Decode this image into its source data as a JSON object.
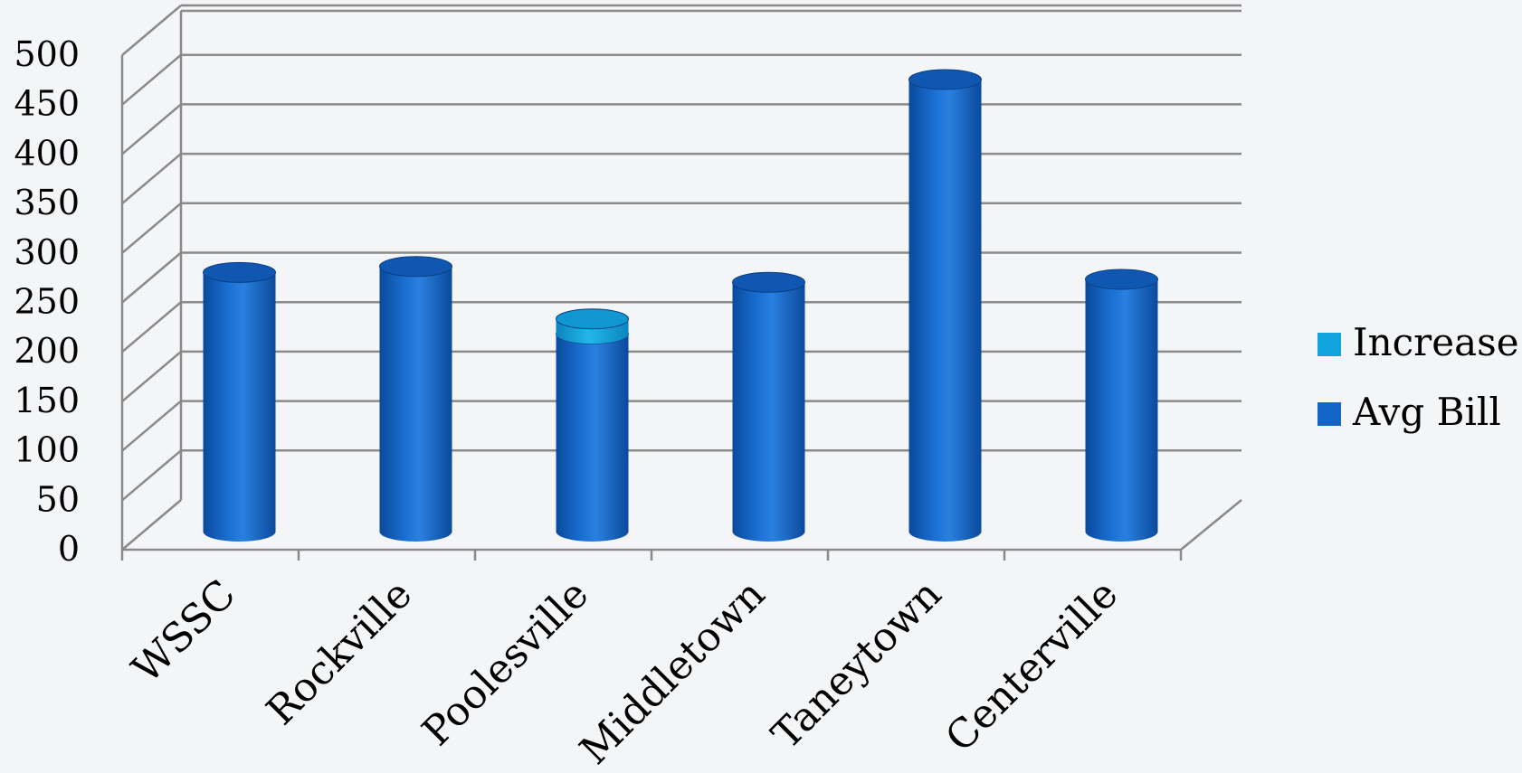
{
  "chart_data": {
    "type": "bar",
    "style": "3d-cylinder",
    "categories": [
      "WSSC",
      "Rockville",
      "Poolesville",
      "Middletown",
      "Taneytown",
      "Centerville"
    ],
    "series": [
      {
        "name": "Avg Bill",
        "values": [
          262,
          268,
          200,
          252,
          457,
          255
        ]
      },
      {
        "name": "Increase",
        "values": [
          0,
          0,
          15,
          0,
          0,
          0
        ]
      }
    ],
    "y_ticks": [
      0,
      50,
      100,
      150,
      200,
      250,
      300,
      350,
      400,
      450,
      500
    ],
    "ylim": [
      0,
      500
    ],
    "grid": true,
    "legend_position": "right",
    "colors": {
      "Avg Bill": "#1565c8",
      "Increase": "#12a5dd"
    }
  }
}
